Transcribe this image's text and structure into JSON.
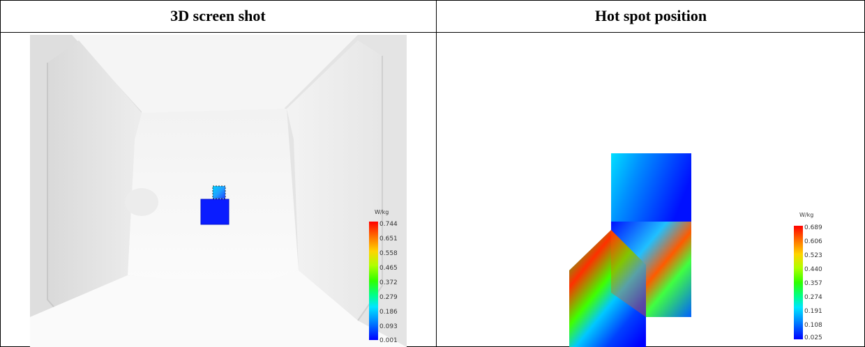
{
  "headers": {
    "left": "3D screen shot",
    "right": "Hot spot position"
  },
  "legend_left": {
    "unit": "W/kg",
    "ticks": [
      "0.744",
      "0.651",
      "0.558",
      "0.465",
      "0.372",
      "0.279",
      "0.186",
      "0.093",
      "0.001"
    ]
  },
  "legend_right": {
    "unit": "W/kg",
    "ticks": [
      "0.689",
      "0.606",
      "0.523",
      "0.440",
      "0.357",
      "0.274",
      "0.191",
      "0.108",
      "0.025"
    ]
  },
  "colors": {
    "max": "#ff0000",
    "mid": "#2fff00",
    "min": "#0000ff",
    "phantom": "#e9e9e9"
  }
}
